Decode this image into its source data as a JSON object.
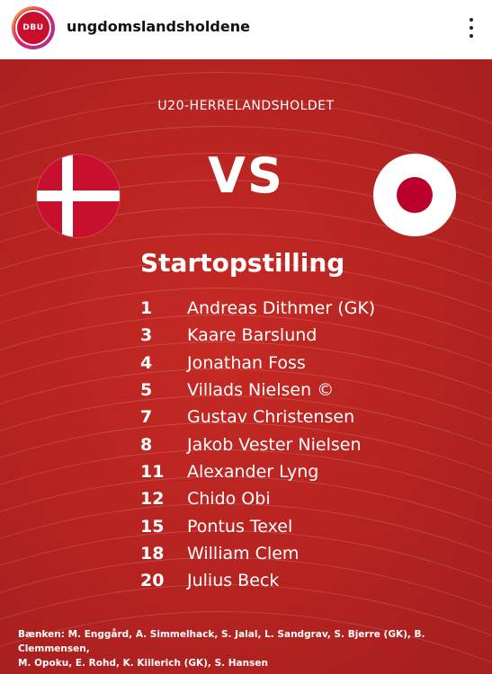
{
  "header": {
    "username": "ungdomslandsholdene",
    "avatar_text": "DBU"
  },
  "post": {
    "subtitle": "U20-HERRELANDSHOLDET",
    "vs": "VS",
    "heading": "Startopstilling",
    "lineup": [
      {
        "number": "1",
        "name": "Andreas Dithmer (GK)"
      },
      {
        "number": "3",
        "name": "Kaare Barslund"
      },
      {
        "number": "4",
        "name": "Jonathan Foss"
      },
      {
        "number": "5",
        "name": "Villads Nielsen ©"
      },
      {
        "number": "7",
        "name": "Gustav Christensen"
      },
      {
        "number": "8",
        "name": "Jakob Vester Nielsen"
      },
      {
        "number": "11",
        "name": "Alexander Lyng"
      },
      {
        "number": "12",
        "name": "Chido Obi"
      },
      {
        "number": "15",
        "name": "Pontus Texel"
      },
      {
        "number": "18",
        "name": "William Clem"
      },
      {
        "number": "20",
        "name": "Julius Beck"
      }
    ],
    "bench_line1": "Bænken: M. Enggård, A. Simmelhack, S. Jalal, L. Sandgrav, S. Bjerre (GK), B. Clemmensen,",
    "bench_line2": "M. Opoku, E. Rohd, K. Kiilerich (GK), S. Hansen"
  },
  "colors": {
    "background_red": "#b82421",
    "denmark_red": "#c8102e",
    "japan_red": "#bc002d"
  },
  "icons": {
    "more": "more-vertical-icon",
    "flag_left": "denmark-flag-icon",
    "flag_right": "japan-flag-icon"
  }
}
